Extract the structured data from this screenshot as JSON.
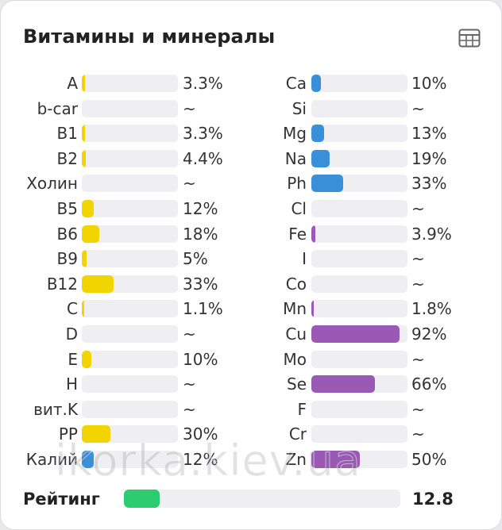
{
  "title": "Витамины и минералы",
  "icons": {
    "table_view": "table-grid-icon"
  },
  "colors": {
    "vitamin": "#f2d400",
    "mineral_blue": "#3a8fd9",
    "mineral_purple": "#9b59b6",
    "rating": "#2ecc71",
    "track": "#efeff1"
  },
  "vitamins": [
    {
      "label": "A",
      "value": "3.3%",
      "percent": 3.3,
      "color": "#f2d400"
    },
    {
      "label": "b-car",
      "value": "~",
      "percent": 0,
      "color": "#f2d400"
    },
    {
      "label": "B1",
      "value": "3.3%",
      "percent": 3.3,
      "color": "#f2d400"
    },
    {
      "label": "B2",
      "value": "4.4%",
      "percent": 4.4,
      "color": "#f2d400"
    },
    {
      "label": "Холин",
      "value": "~",
      "percent": 0,
      "color": "#f2d400"
    },
    {
      "label": "B5",
      "value": "12%",
      "percent": 12,
      "color": "#f2d400"
    },
    {
      "label": "B6",
      "value": "18%",
      "percent": 18,
      "color": "#f2d400"
    },
    {
      "label": "B9",
      "value": "5%",
      "percent": 5,
      "color": "#f2d400"
    },
    {
      "label": "B12",
      "value": "33%",
      "percent": 33,
      "color": "#f2d400"
    },
    {
      "label": "C",
      "value": "1.1%",
      "percent": 1.1,
      "color": "#f2d400"
    },
    {
      "label": "D",
      "value": "~",
      "percent": 0,
      "color": "#f2d400"
    },
    {
      "label": "E",
      "value": "10%",
      "percent": 10,
      "color": "#f2d400"
    },
    {
      "label": "H",
      "value": "~",
      "percent": 0,
      "color": "#f2d400"
    },
    {
      "label": "вит.K",
      "value": "~",
      "percent": 0,
      "color": "#f2d400"
    },
    {
      "label": "PP",
      "value": "30%",
      "percent": 30,
      "color": "#f2d400"
    },
    {
      "label": "Калий",
      "value": "12%",
      "percent": 12,
      "color": "#3a8fd9"
    }
  ],
  "minerals": [
    {
      "label": "Ca",
      "value": "10%",
      "percent": 10,
      "color": "#3a8fd9"
    },
    {
      "label": "Si",
      "value": "~",
      "percent": 0,
      "color": "#3a8fd9"
    },
    {
      "label": "Mg",
      "value": "13%",
      "percent": 13,
      "color": "#3a8fd9"
    },
    {
      "label": "Na",
      "value": "19%",
      "percent": 19,
      "color": "#3a8fd9"
    },
    {
      "label": "Ph",
      "value": "33%",
      "percent": 33,
      "color": "#3a8fd9"
    },
    {
      "label": "Cl",
      "value": "~",
      "percent": 0,
      "color": "#3a8fd9"
    },
    {
      "label": "Fe",
      "value": "3.9%",
      "percent": 3.9,
      "color": "#9b59b6"
    },
    {
      "label": "I",
      "value": "~",
      "percent": 0,
      "color": "#9b59b6"
    },
    {
      "label": "Co",
      "value": "~",
      "percent": 0,
      "color": "#9b59b6"
    },
    {
      "label": "Mn",
      "value": "1.8%",
      "percent": 1.8,
      "color": "#9b59b6"
    },
    {
      "label": "Cu",
      "value": "92%",
      "percent": 92,
      "color": "#9b59b6"
    },
    {
      "label": "Mo",
      "value": "~",
      "percent": 0,
      "color": "#9b59b6"
    },
    {
      "label": "Se",
      "value": "66%",
      "percent": 66,
      "color": "#9b59b6"
    },
    {
      "label": "F",
      "value": "~",
      "percent": 0,
      "color": "#9b59b6"
    },
    {
      "label": "Cr",
      "value": "~",
      "percent": 0,
      "color": "#9b59b6"
    },
    {
      "label": "Zn",
      "value": "50%",
      "percent": 50,
      "color": "#9b59b6"
    }
  ],
  "rating": {
    "label": "Рейтинг",
    "value": "12.8",
    "fraction": 0.128,
    "color": "#2ecc71"
  },
  "watermark": "ikorka.kiev.ua"
}
